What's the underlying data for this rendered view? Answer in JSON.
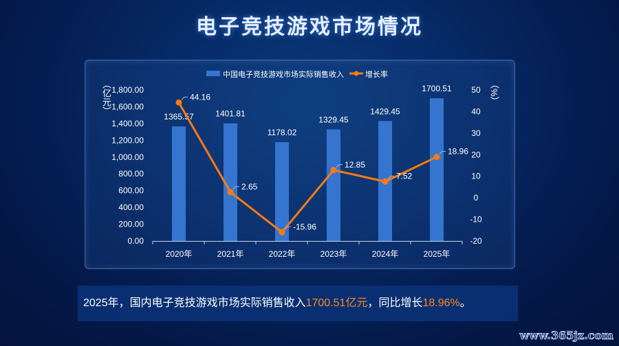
{
  "page_title": "电子竞技游戏市场情况",
  "chart_data": {
    "type": "bar+line",
    "categories": [
      "2020年",
      "2021年",
      "2022年",
      "2023年",
      "2024年",
      "2025年"
    ],
    "series": [
      {
        "name": "中国电子竞技游戏市场实际销售收入",
        "type": "bar",
        "axis": "left",
        "values": [
          1365.57,
          1401.81,
          1178.02,
          1329.45,
          1429.45,
          1700.51
        ],
        "labels": [
          "1365.57",
          "1401.81",
          "1178.02",
          "1329.45",
          "1429.45",
          "1700.51"
        ]
      },
      {
        "name": "增长率",
        "type": "line",
        "axis": "right",
        "values": [
          44.16,
          2.65,
          -15.96,
          12.85,
          7.52,
          18.96
        ],
        "labels": [
          "44.16",
          "2.65",
          "-15.96",
          "12.85",
          "7.52",
          "18.96"
        ]
      }
    ],
    "ylabel_left": "（亿元）",
    "ylabel_right": "（%）",
    "ylim_left": [
      0,
      1800
    ],
    "yticks_left": [
      "0.00",
      "200.00",
      "400.00",
      "600.00",
      "800.00",
      "1,000.00",
      "1,200.00",
      "1,400.00",
      "1,600.00",
      "1,800.00"
    ],
    "ylim_right": [
      -20,
      50
    ],
    "yticks_right": [
      "-20",
      "-10",
      "0",
      "10",
      "20",
      "30",
      "40",
      "50"
    ],
    "legend": "top-center",
    "colors": {
      "bar": "#3575d0",
      "line": "#ff7a10"
    }
  },
  "caption": {
    "pre": "2025年，国内电子竞技游戏市场实际销售收入",
    "value1": "1700.51亿元",
    "mid": "，同比增长",
    "value2": "18.96%",
    "post": "。"
  },
  "watermark": "www.365jz.com"
}
